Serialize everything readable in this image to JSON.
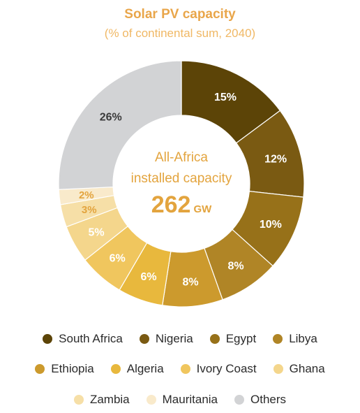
{
  "chart_data": {
    "type": "pie",
    "title": "Solar PV capacity",
    "subtitle": "(% of continental sum, 2040)",
    "center": {
      "line1": "All-Africa",
      "line2": "installed capacity",
      "value": "262",
      "unit": "GW"
    },
    "slices": [
      {
        "name": "South Africa",
        "value": 15,
        "label": "15%",
        "color": "#5C4407",
        "label_color": "#ffffff"
      },
      {
        "name": "Nigeria",
        "value": 12,
        "label": "12%",
        "color": "#7A5A12",
        "label_color": "#ffffff"
      },
      {
        "name": "Egypt",
        "value": 10,
        "label": "10%",
        "color": "#977119",
        "label_color": "#ffffff"
      },
      {
        "name": "Libya",
        "value": 8,
        "label": "8%",
        "color": "#B08526",
        "label_color": "#ffffff"
      },
      {
        "name": "Ethiopia",
        "value": 8,
        "label": "8%",
        "color": "#CC9A2D",
        "label_color": "#ffffff"
      },
      {
        "name": "Algeria",
        "value": 6,
        "label": "6%",
        "color": "#E8B83D",
        "label_color": "#ffffff"
      },
      {
        "name": "Ivory Coast",
        "value": 6,
        "label": "6%",
        "color": "#F0C65E",
        "label_color": "#ffffff"
      },
      {
        "name": "Ghana",
        "value": 5,
        "label": "5%",
        "color": "#F4D68C",
        "label_color": "#ffffff"
      },
      {
        "name": "Zambia",
        "value": 3,
        "label": "3%",
        "color": "#F6DFA7",
        "label_color": "#E3A43E"
      },
      {
        "name": "Mauritania",
        "value": 2,
        "label": "2%",
        "color": "#F9EACB",
        "label_color": "#E3A43E"
      },
      {
        "name": "Others",
        "value": 26,
        "label": "26%",
        "color": "#D2D3D5",
        "label_color": "#3a3a3a"
      }
    ],
    "legend_rows": [
      [
        "South Africa",
        "Nigeria",
        "Egypt",
        "Libya"
      ],
      [
        "Ethiopia",
        "Algeria",
        "Ivory Coast",
        "Ghana"
      ],
      [
        "Zambia",
        "Mauritania",
        "Others"
      ]
    ]
  }
}
